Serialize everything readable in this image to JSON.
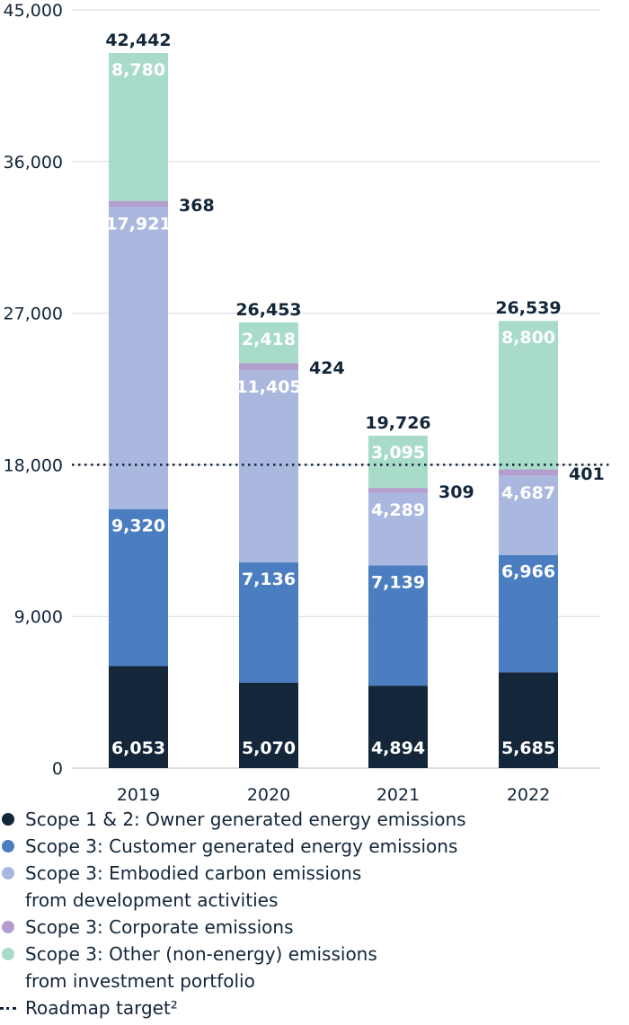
{
  "chart_data": {
    "type": "bar",
    "stacked": true,
    "categories": [
      "2019",
      "2020",
      "2021",
      "2022"
    ],
    "ylim": [
      0,
      45000
    ],
    "yticks": [
      "0",
      "9,000",
      "18,000",
      "27,000",
      "36,000",
      "45,000"
    ],
    "ytick_values": [
      0,
      9000,
      18000,
      27000,
      36000,
      45000
    ],
    "grid": true,
    "legend_position": "bottom",
    "series": [
      {
        "name": "Scope 1 & 2: Owner generated energy emissions",
        "color": "#13263a",
        "values": [
          6053,
          5070,
          4894,
          5685
        ],
        "labels": [
          "6,053",
          "5,070",
          "4,894",
          "5,685"
        ]
      },
      {
        "name": "Scope 3: Customer generated energy emissions",
        "color": "#4a7ec1",
        "values": [
          9320,
          7136,
          7139,
          6966
        ],
        "labels": [
          "9,320",
          "7,136",
          "7,139",
          "6,966"
        ]
      },
      {
        "name": "Scope 3: Embodied carbon emissions\nfrom development activities",
        "color": "#aab8e0",
        "values": [
          17921,
          11405,
          4289,
          4687
        ],
        "labels": [
          "17,921",
          "11,405",
          "4,289",
          "4,687"
        ]
      },
      {
        "name": "Scope 3: Corporate emissions",
        "color": "#b39fce",
        "values": [
          368,
          424,
          309,
          401
        ],
        "labels": [
          "368",
          "424",
          "309",
          "401"
        ]
      },
      {
        "name": "Scope 3: Other (non-energy) emissions\nfrom investment portfolio",
        "color": "#a8dbc8",
        "values": [
          8780,
          2418,
          3095,
          8800
        ],
        "labels": [
          "8,780",
          "2,418",
          "3,095",
          "8,800"
        ]
      }
    ],
    "totals": [
      42442,
      26453,
      19726,
      26539
    ],
    "total_labels": [
      "42,442",
      "26,453",
      "19,726",
      "26,539"
    ],
    "roadmap_target": {
      "value": 18000,
      "label": "Roadmap target²"
    }
  }
}
